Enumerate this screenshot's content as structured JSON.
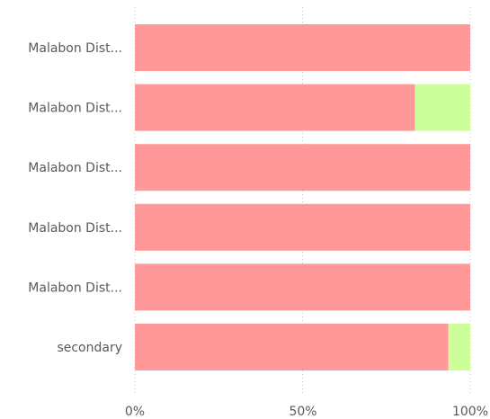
{
  "chart_data": {
    "type": "bar",
    "orientation": "horizontal",
    "stacking": "percent",
    "categories": [
      "Malabon Dist...",
      "Malabon Dist...",
      "Malabon Dist...",
      "Malabon Dist...",
      "Malabon Dist...",
      "secondary"
    ],
    "series": [
      {
        "color": "#ff9999",
        "values": [
          100,
          83.5,
          100,
          100,
          100,
          93.5
        ]
      },
      {
        "color": "#ccff99",
        "values": [
          0,
          16.5,
          0,
          0,
          0,
          6.5
        ]
      }
    ],
    "xlim": [
      0,
      100
    ],
    "x_ticks": [
      "0%",
      "50%",
      "100%"
    ],
    "grid": true,
    "legend": "none",
    "title": "",
    "xlabel": "",
    "ylabel": ""
  }
}
